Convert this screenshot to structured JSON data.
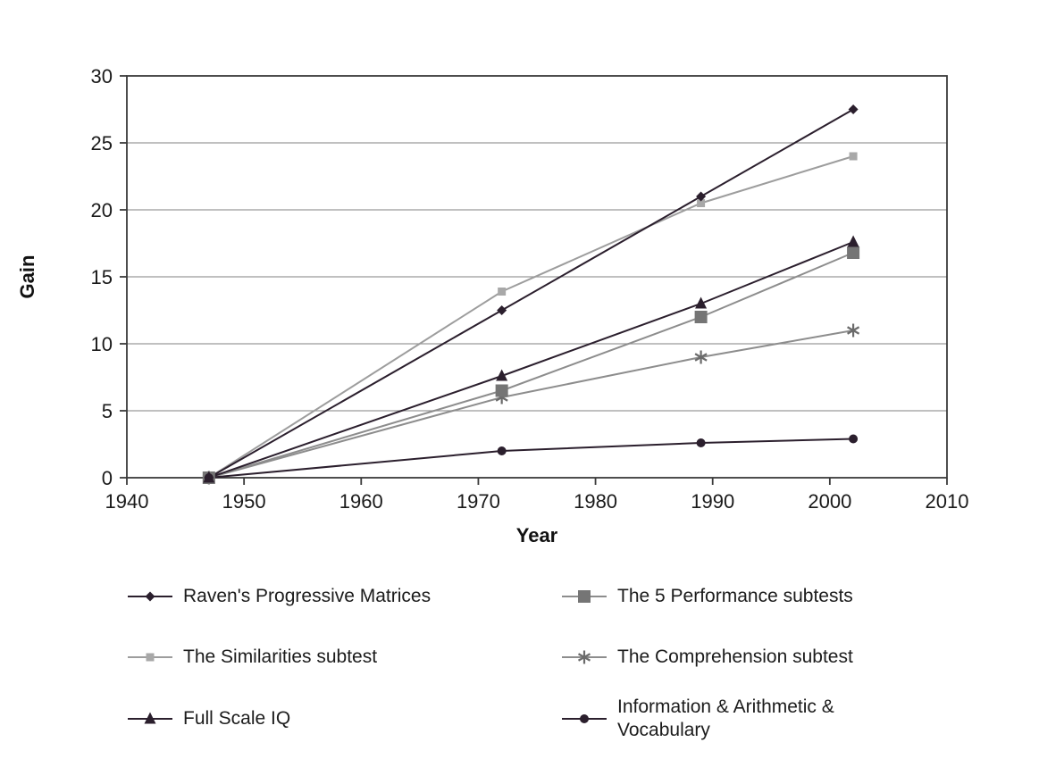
{
  "chart_data": {
    "type": "line",
    "title": "",
    "xlabel": "Year",
    "ylabel": "Gain",
    "xlim": [
      1940,
      2010
    ],
    "ylim": [
      0,
      30
    ],
    "x_ticks": [
      1940,
      1950,
      1960,
      1970,
      1980,
      1990,
      2000,
      2010
    ],
    "y_ticks": [
      0,
      5,
      10,
      15,
      20,
      25,
      30
    ],
    "grid": "horizontal-only",
    "legend_position": "bottom-two-columns",
    "x": [
      1947,
      1972,
      1989,
      2002
    ],
    "series": [
      {
        "name": "Raven's Progressive Matrices",
        "values": [
          0,
          12.5,
          21,
          27.5
        ],
        "marker": "diamond",
        "marker_size": 11,
        "line_color": "#2b1f2d",
        "marker_color": "#2b1f2d"
      },
      {
        "name": "The 5 Performance subtests",
        "values": [
          0,
          6.5,
          12,
          16.8
        ],
        "marker": "square",
        "marker_size": 14,
        "line_color": "#8d8d8d",
        "marker_color": "#757575"
      },
      {
        "name": "The Similarities subtest",
        "values": [
          0,
          13.9,
          20.5,
          24
        ],
        "marker": "square",
        "marker_size": 9,
        "line_color": "#9d9d9d",
        "marker_color": "#a8a8a8"
      },
      {
        "name": "The Comprehension subtest",
        "values": [
          0,
          6,
          9,
          11
        ],
        "marker": "asterisk",
        "marker_size": 15,
        "line_color": "#8d8d8d",
        "marker_color": "#6b6b6b"
      },
      {
        "name": "Full Scale IQ",
        "values": [
          0,
          7.6,
          13,
          17.6
        ],
        "marker": "triangle",
        "marker_size": 13,
        "line_color": "#2b1f2d",
        "marker_color": "#2b1f2d"
      },
      {
        "name": "Information & Arithmetic & Vocabulary",
        "values": [
          0,
          2,
          2.6,
          2.9
        ],
        "marker": "circle",
        "marker_size": 10,
        "line_color": "#2b1f2d",
        "marker_color": "#2b1f2d"
      }
    ],
    "colors": {
      "axis": "#3a3a3a",
      "grid": "#9a9a9a",
      "text": "#1a1a1a",
      "background": "#ffffff",
      "dark_series": "#2b1f2d",
      "gray_series": "#8d8d8d"
    }
  }
}
